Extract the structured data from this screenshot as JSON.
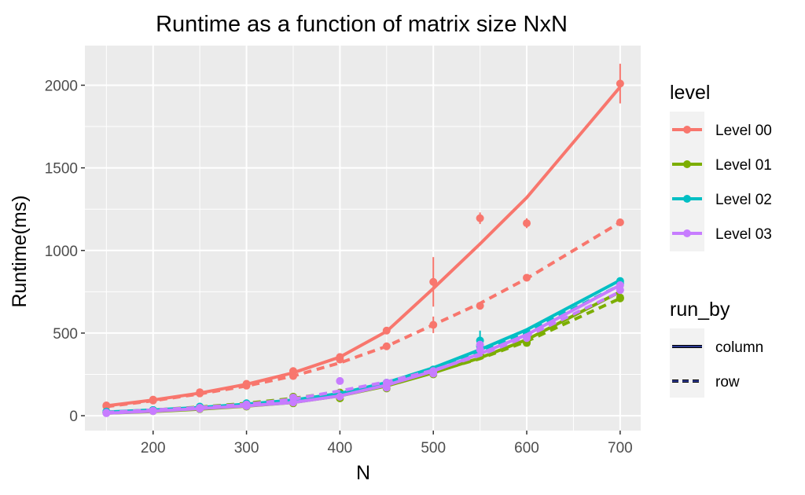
{
  "chart_data": {
    "type": "line",
    "title": "Runtime as a function of matrix size NxN",
    "xlabel": "N",
    "ylabel": "Runtime(ms)",
    "xlim": [
      127,
      722
    ],
    "ylim": [
      -90,
      2240
    ],
    "x_ticks": [
      200,
      300,
      400,
      500,
      600,
      700
    ],
    "y_ticks": [
      0,
      500,
      1000,
      1500,
      2000
    ],
    "grid": true,
    "legend_position": "right",
    "colors": {
      "Level 00": "#F8766D",
      "Level 01": "#7CAE00",
      "Level 02": "#00BFC4",
      "Level 03": "#C77CFF",
      "panel": "#EBEBEB",
      "grid": "#FFFFFF"
    },
    "legends": {
      "level": {
        "title": "level",
        "entries": [
          "Level 00",
          "Level 01",
          "Level 02",
          "Level 03"
        ]
      },
      "run_by": {
        "title": "run_by",
        "entries": [
          "column",
          "row"
        ]
      }
    },
    "x": [
      150,
      200,
      250,
      300,
      350,
      400,
      450,
      500,
      550,
      600,
      700
    ],
    "series": [
      {
        "name": "Level 00",
        "run_by": "column",
        "values": [
          62,
          97,
          142,
          193,
          270,
          355,
          515,
          810,
          1195,
          1165,
          2010
        ],
        "errors": [
          0,
          0,
          0,
          0,
          0,
          0,
          0,
          150,
          35,
          30,
          120
        ],
        "smooth": [
          60,
          95,
          137,
          190,
          260,
          355,
          510,
          770,
          1040,
          1320,
          1990
        ]
      },
      {
        "name": "Level 00",
        "run_by": "row",
        "values": [
          58,
          92,
          135,
          182,
          240,
          340,
          420,
          550,
          665,
          835,
          1170
        ],
        "errors": [
          0,
          0,
          0,
          0,
          0,
          0,
          0,
          50,
          0,
          0,
          20
        ],
        "smooth": [
          55,
          90,
          132,
          180,
          240,
          320,
          420,
          550,
          680,
          830,
          1170
        ]
      },
      {
        "name": "Level 01",
        "run_by": "column",
        "values": [
          20,
          28,
          40,
          55,
          75,
          105,
          165,
          250,
          370,
          440,
          710
        ],
        "errors": [
          0,
          0,
          0,
          0,
          0,
          0,
          0,
          0,
          0,
          0,
          0
        ],
        "smooth": [
          15,
          25,
          40,
          58,
          80,
          120,
          180,
          260,
          350,
          460,
          750
        ]
      },
      {
        "name": "Level 01",
        "run_by": "row",
        "values": [
          18,
          30,
          45,
          65,
          115,
          140,
          190,
          260,
          375,
          445,
          715
        ],
        "errors": [
          0,
          0,
          0,
          0,
          0,
          0,
          0,
          0,
          0,
          0,
          0
        ],
        "smooth": [
          20,
          35,
          52,
          75,
          105,
          145,
          195,
          265,
          345,
          450,
          710
        ]
      },
      {
        "name": "Level 02",
        "run_by": "column",
        "values": [
          25,
          35,
          55,
          75,
          90,
          130,
          200,
          280,
          455,
          500,
          815
        ],
        "errors": [
          0,
          0,
          0,
          0,
          0,
          0,
          0,
          0,
          60,
          0,
          0
        ],
        "smooth": [
          22,
          35,
          50,
          70,
          95,
          135,
          200,
          290,
          400,
          520,
          820
        ]
      },
      {
        "name": "Level 02",
        "run_by": "row",
        "values": [
          20,
          32,
          50,
          70,
          88,
          125,
          195,
          275,
          420,
          490,
          800
        ],
        "errors": [
          0,
          0,
          0,
          0,
          0,
          0,
          0,
          0,
          0,
          0,
          0
        ],
        "smooth": [
          20,
          33,
          48,
          68,
          90,
          130,
          195,
          280,
          385,
          505,
          790
        ]
      },
      {
        "name": "Level 03",
        "run_by": "column",
        "values": [
          15,
          28,
          42,
          58,
          80,
          115,
          170,
          255,
          400,
          470,
          790
        ],
        "errors": [
          0,
          0,
          0,
          0,
          0,
          0,
          0,
          0,
          0,
          0,
          0
        ],
        "smooth": [
          15,
          28,
          43,
          60,
          80,
          120,
          185,
          270,
          375,
          490,
          790
        ]
      },
      {
        "name": "Level 03",
        "run_by": "row",
        "values": [
          18,
          30,
          48,
          68,
          110,
          210,
          200,
          270,
          430,
          475,
          760
        ],
        "errors": [
          0,
          0,
          0,
          0,
          0,
          0,
          0,
          0,
          0,
          0,
          0
        ],
        "smooth": [
          20,
          35,
          50,
          70,
          100,
          150,
          205,
          275,
          365,
          480,
          750
        ]
      }
    ]
  }
}
